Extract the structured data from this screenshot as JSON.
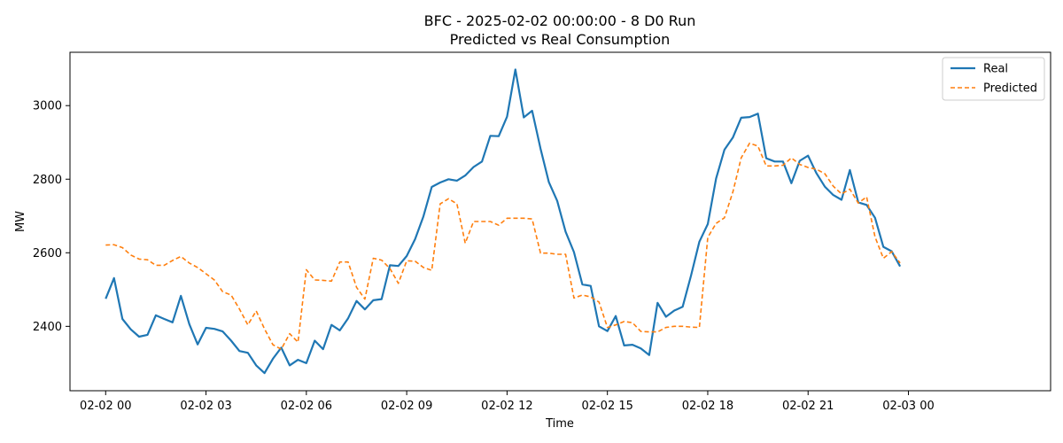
{
  "chart_data": {
    "type": "line",
    "title": "BFC - 2025-02-02 00:00:00 - 8 D0 Run",
    "subtitle": "Predicted vs Real Consumption",
    "xlabel": "Time",
    "ylabel": "MW",
    "x_start": "2025-02-02 00:00",
    "x_step_minutes": 15,
    "xlim": [
      "2025-02-01 22:56",
      "2025-02-03 04:15"
    ],
    "ylim": [
      2225,
      3145
    ],
    "x_ticks": [
      {
        "value": "2025-02-02 00:00",
        "label": "02-02 00"
      },
      {
        "value": "2025-02-02 03:00",
        "label": "02-02 03"
      },
      {
        "value": "2025-02-02 06:00",
        "label": "02-02 06"
      },
      {
        "value": "2025-02-02 09:00",
        "label": "02-02 09"
      },
      {
        "value": "2025-02-02 12:00",
        "label": "02-02 12"
      },
      {
        "value": "2025-02-02 15:00",
        "label": "02-02 15"
      },
      {
        "value": "2025-02-02 18:00",
        "label": "02-02 18"
      },
      {
        "value": "2025-02-02 21:00",
        "label": "02-02 21"
      },
      {
        "value": "2025-02-03 00:00",
        "label": "02-03 00"
      }
    ],
    "y_ticks": [
      {
        "value": 2400,
        "label": "2400"
      },
      {
        "value": 2600,
        "label": "2600"
      },
      {
        "value": 2800,
        "label": "2800"
      },
      {
        "value": 3000,
        "label": "3000"
      }
    ],
    "grid": false,
    "legend_position": "top-right",
    "series": [
      {
        "name": "Real",
        "color": "#1f77b4",
        "dash": "solid",
        "values": [
          2475,
          2531,
          2420,
          2392,
          2372,
          2377,
          2430,
          2420,
          2411,
          2483,
          2406,
          2351,
          2396,
          2393,
          2386,
          2361,
          2333,
          2328,
          2294,
          2273,
          2312,
          2342,
          2294,
          2309,
          2300,
          2361,
          2338,
          2404,
          2389,
          2422,
          2469,
          2446,
          2471,
          2474,
          2566,
          2564,
          2591,
          2637,
          2699,
          2779,
          2791,
          2800,
          2796,
          2810,
          2833,
          2848,
          2918,
          2917,
          2970,
          3098,
          2968,
          2986,
          2883,
          2792,
          2741,
          2657,
          2602,
          2514,
          2510,
          2400,
          2387,
          2428,
          2348,
          2350,
          2340,
          2322,
          2464,
          2426,
          2443,
          2453,
          2538,
          2630,
          2678,
          2802,
          2880,
          2913,
          2967,
          2969,
          2978,
          2857,
          2848,
          2848,
          2789,
          2850,
          2864,
          2816,
          2780,
          2757,
          2744,
          2825,
          2737,
          2730,
          2695,
          2616,
          2604,
          2563
        ]
      },
      {
        "name": "Predicted",
        "color": "#ff7f0e",
        "dash": "dashed",
        "values": [
          2621,
          2622,
          2614,
          2594,
          2583,
          2581,
          2566,
          2566,
          2579,
          2590,
          2572,
          2560,
          2543,
          2526,
          2494,
          2485,
          2447,
          2404,
          2442,
          2393,
          2350,
          2338,
          2380,
          2357,
          2554,
          2526,
          2525,
          2523,
          2575,
          2575,
          2506,
          2474,
          2585,
          2580,
          2557,
          2517,
          2578,
          2577,
          2560,
          2552,
          2733,
          2747,
          2733,
          2626,
          2685,
          2685,
          2685,
          2675,
          2694,
          2694,
          2694,
          2692,
          2599,
          2599,
          2596,
          2596,
          2477,
          2485,
          2480,
          2466,
          2397,
          2404,
          2413,
          2410,
          2386,
          2385,
          2385,
          2397,
          2400,
          2400,
          2398,
          2397,
          2642,
          2680,
          2695,
          2765,
          2858,
          2898,
          2890,
          2836,
          2836,
          2838,
          2858,
          2840,
          2832,
          2827,
          2815,
          2781,
          2760,
          2773,
          2735,
          2752,
          2643,
          2585,
          2603,
          2572
        ]
      }
    ]
  }
}
